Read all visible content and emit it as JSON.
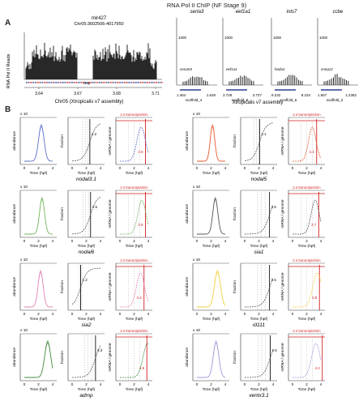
{
  "title": "RNA Pol II ChIP (NF Stage 9)",
  "panel_a": {
    "label": "A",
    "ylabel": "RNA Pol II Reads",
    "xlabel": "Chr05 (Xtropicalis v7 assembly)",
    "xlabel_right": "Xtropicalis v7 assembly",
    "track": {
      "name": "mir427",
      "locus": "Chr05:3602506-4017950",
      "gap_label": "Gap",
      "tick_labels": [
        "3.64",
        "3.67",
        "3.68",
        "3.71"
      ]
    },
    "mini_tracks": [
      {
        "gene": "serta3",
        "ymax": "1000",
        "gene_label": "cerunt3",
        "scaffold": "scaffold_4",
        "left_label": "1.464",
        "right_label": "1.629"
      },
      {
        "gene": "eef1a1",
        "ymax": "1000",
        "gene_label": "eef1a1",
        "scaffold": "scaffold_5",
        "left_label": "3.728",
        "right_label": "3.727"
      },
      {
        "gene": "ints7",
        "ymax": "1000",
        "gene_label": "hoda1",
        "scaffold": "scaffold_6",
        "left_label": "9.232",
        "right_label": "9.234"
      },
      {
        "gene": "ccbe",
        "ymax": "1000",
        "gene_label": "cnnq12",
        "scaffold": "scaffold_2",
        "left_label": "1.657",
        "right_label": "1.2382"
      }
    ]
  },
  "panel_b": {
    "label": "B",
    "genes": [
      {
        "name": "nodal3.1",
        "color": "#5b6fc9",
        "peak": 2.4,
        "spread": 0.55,
        "cross": 2.5,
        "red": "3.6",
        "dash": "2.2"
      },
      {
        "name": "nodal5",
        "color": "#e8562e",
        "peak": 2.2,
        "spread": 0.45,
        "cross": 2.1,
        "red": "3.4",
        "dash": "2.1"
      },
      {
        "name": "nodal6",
        "color": "#6fb65a",
        "peak": 2.5,
        "spread": 0.5,
        "cross": 2.6,
        "red": "3.6",
        "dash": "2.5"
      },
      {
        "name": "sia1",
        "color": "#555555",
        "peak": 2.6,
        "spread": 0.5,
        "cross": 3.5,
        "red": "3.7",
        "dash": "3.5"
      },
      {
        "name": "sia2",
        "color": "#e57fb6",
        "peak": 2.3,
        "spread": 0.5,
        "cross": 1.2,
        "red": "3.4",
        "dash": "1.2"
      },
      {
        "name": "id111",
        "color": "#f2cf3e",
        "peak": 2.9,
        "spread": 0.6,
        "cross": 3.5,
        "red": "3.8",
        "dash": "3.5"
      },
      {
        "name": "admp",
        "color": "#3f8a3f",
        "peak": 3.3,
        "spread": 0.6,
        "cross": 3.3,
        "red": "3.8",
        "dash": "3.3"
      },
      {
        "name": "ventx3.1",
        "color": "#9a9ad8",
        "peak": 2.7,
        "spread": 0.55,
        "cross": 3.6,
        "red": "4.2",
        "dash": "3.6"
      }
    ],
    "ylabel_abundance": "abundance",
    "ylabel_fraction": "fraction",
    "ylabel_rate": "mRNA / genome",
    "xlabel_time": "Time (hpf)",
    "exp_label": "x 10",
    "annotation": "2.4 transcripts/min",
    "xticks": [
      "0",
      "2",
      "4"
    ]
  },
  "colors": {
    "bars": "#111111",
    "red": "#d21f1f",
    "gene_track": "#2a3e8f"
  }
}
